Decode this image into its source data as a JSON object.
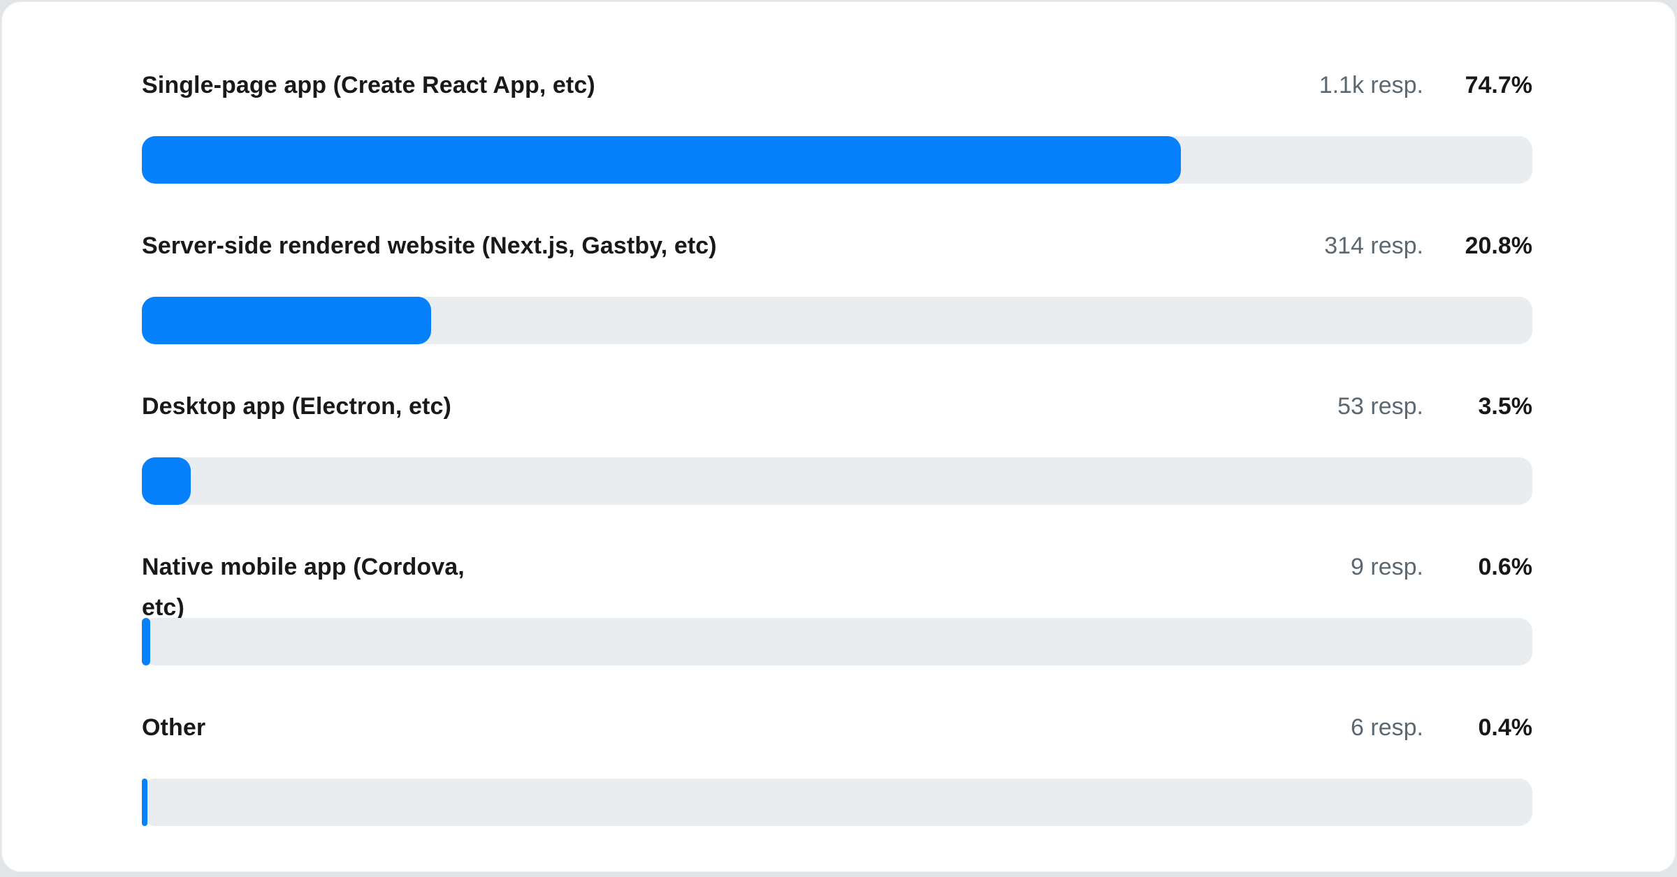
{
  "chart_data": {
    "type": "bar",
    "orientation": "horizontal",
    "title": "",
    "categories": [
      "Single-page app (Create React App, etc)",
      "Server-side rendered website (Next.js, Gastby, etc)",
      "Desktop app (Electron, etc)",
      "Native mobile app (Cordova, etc)",
      "Other"
    ],
    "values": [
      74.7,
      20.8,
      3.5,
      0.6,
      0.4
    ],
    "value_unit": "%",
    "response_counts": [
      "1.1k",
      "314",
      "53",
      "9",
      "6"
    ],
    "xlim": [
      0,
      100
    ],
    "grid": false,
    "legend": "none"
  },
  "colors": {
    "bar_fill": "#0680fb",
    "bar_track": "#eaedf0",
    "label_text": "#18191b",
    "muted_text": "#5a6872",
    "percent_text": "#17181a",
    "card_bg": "#ffffff",
    "page_bg": "#e1e5e8"
  },
  "rows": [
    {
      "label": "Single-page app (Create React App, etc)",
      "responses": "1.1k resp.",
      "percent": "74.7%",
      "value": 74.7
    },
    {
      "label": "Server-side rendered website (Next.js, Gastby, etc)",
      "responses": "314 resp.",
      "percent": "20.8%",
      "value": 20.8
    },
    {
      "label": "Desktop app (Electron, etc)",
      "responses": "53 resp.",
      "percent": "3.5%",
      "value": 3.5
    },
    {
      "label": "Native mobile app (Cordova,\netc)",
      "responses": "9 resp.",
      "percent": "0.6%",
      "value": 0.6
    },
    {
      "label": "Other",
      "responses": "6 resp.",
      "percent": "0.4%",
      "value": 0.4
    }
  ]
}
